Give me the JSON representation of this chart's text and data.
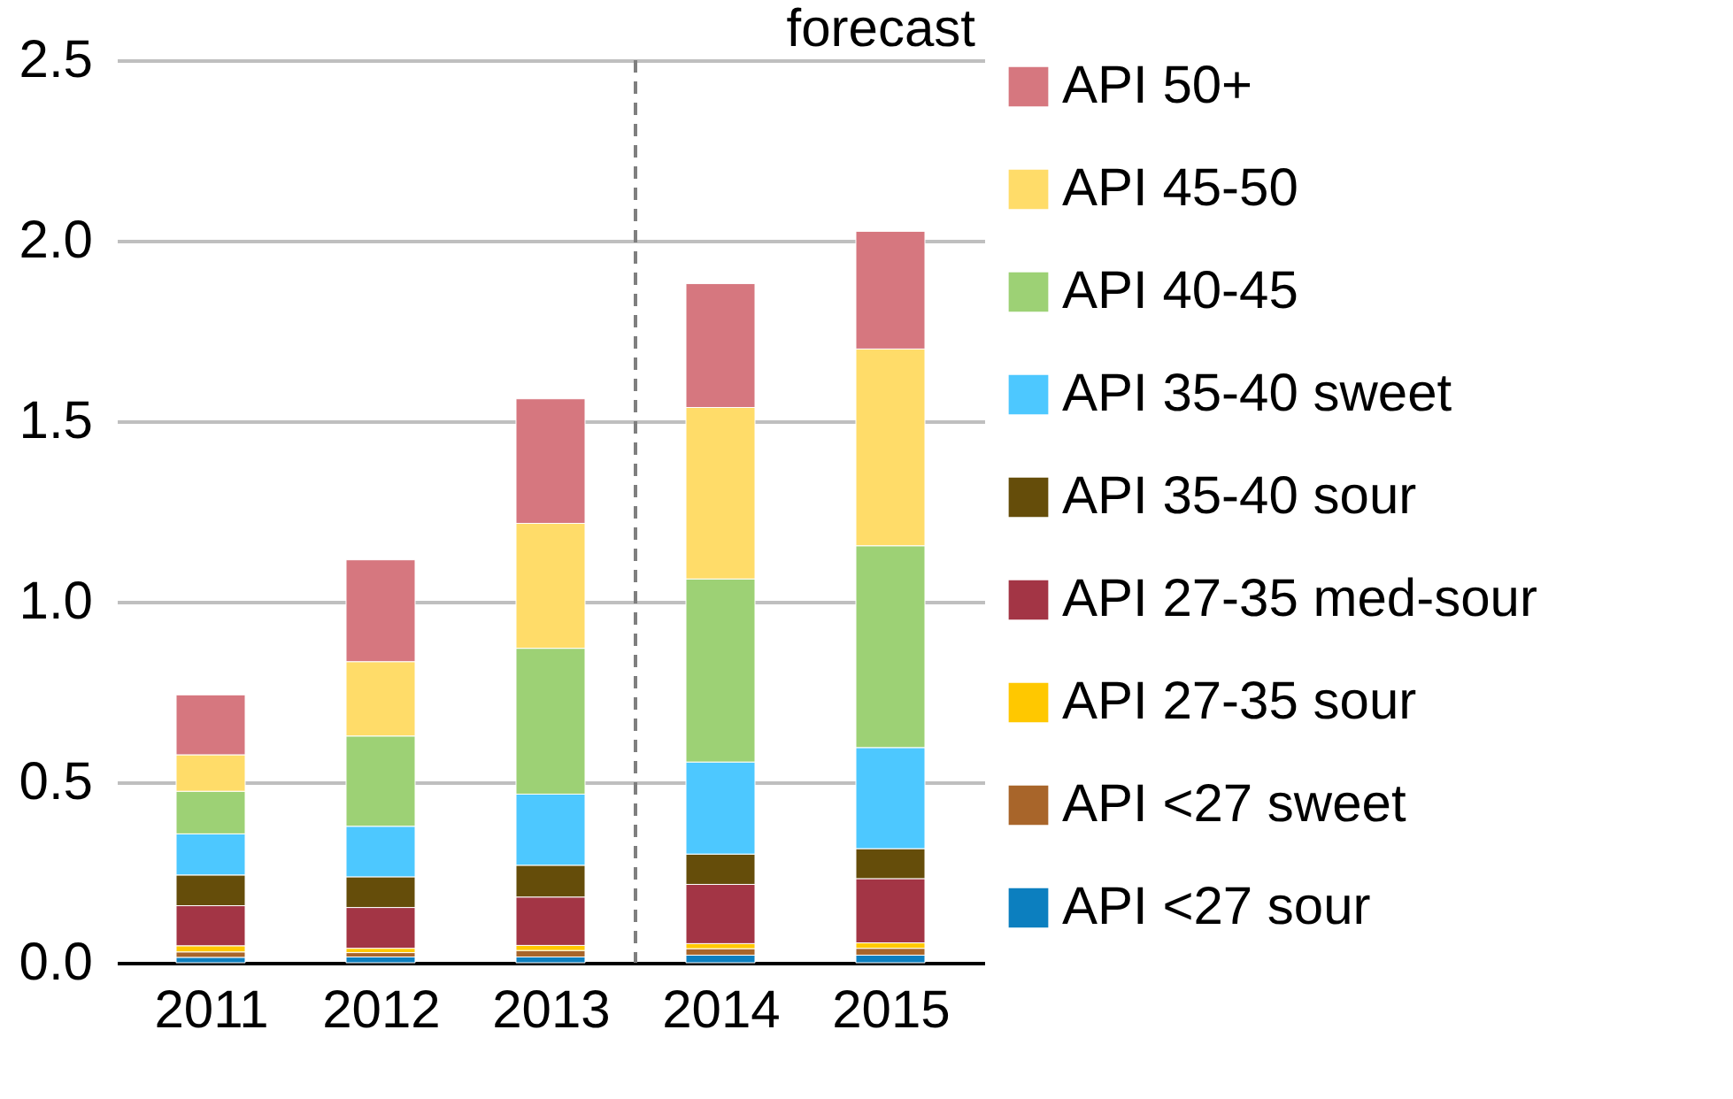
{
  "chart_data": {
    "type": "bar",
    "stacked": true,
    "x": [
      2011,
      2012,
      2013,
      2014,
      2015
    ],
    "xlim": [
      2010.5,
      2015.5
    ],
    "xticks": [
      2011,
      2012,
      2013,
      2014,
      2015
    ],
    "ylim": [
      0,
      2.5
    ],
    "yticks": [
      {
        "value": 0,
        "label": "0.0"
      },
      0.5,
      {
        "value": 1,
        "label": "1.0"
      },
      1.5,
      {
        "value": 2,
        "label": "2.0"
      },
      2.5
    ],
    "grid": "y",
    "legend": "right",
    "ref_lines": [
      {
        "axis": "x",
        "value": 2013.5,
        "label": "forecast",
        "color": "#7f7f7f",
        "line_style": "dashed"
      }
    ],
    "series": [
      {
        "name": "API <27 sour",
        "color": "#0c7fbf",
        "values": [
          0.015,
          0.016,
          0.016,
          0.021,
          0.021
        ]
      },
      {
        "name": "API <27 sweet",
        "color": "#a8652a",
        "values": [
          0.015,
          0.012,
          0.018,
          0.018,
          0.019
        ]
      },
      {
        "name": "API 27-35 sour",
        "color": "#ffc800",
        "values": [
          0.017,
          0.012,
          0.014,
          0.014,
          0.015
        ]
      },
      {
        "name": "API 27-35 med-sour",
        "color": "#a33545",
        "values": [
          0.111,
          0.113,
          0.134,
          0.164,
          0.178
        ]
      },
      {
        "name": "API 35-40 sour",
        "color": "#654d0a",
        "values": [
          0.085,
          0.085,
          0.088,
          0.084,
          0.083
        ]
      },
      {
        "name": "API 35-40 sweet",
        "color": "#4dc8ff",
        "values": [
          0.114,
          0.14,
          0.197,
          0.255,
          0.28
        ]
      },
      {
        "name": "API 40-45",
        "color": "#9dd175",
        "values": [
          0.118,
          0.25,
          0.404,
          0.507,
          0.559
        ]
      },
      {
        "name": "API 45-50",
        "color": "#ffdc69",
        "values": [
          0.101,
          0.206,
          0.346,
          0.475,
          0.545
        ]
      },
      {
        "name": "API 50+",
        "color": "#d6777f",
        "values": [
          0.166,
          0.282,
          0.345,
          0.343,
          0.326
        ]
      }
    ]
  }
}
